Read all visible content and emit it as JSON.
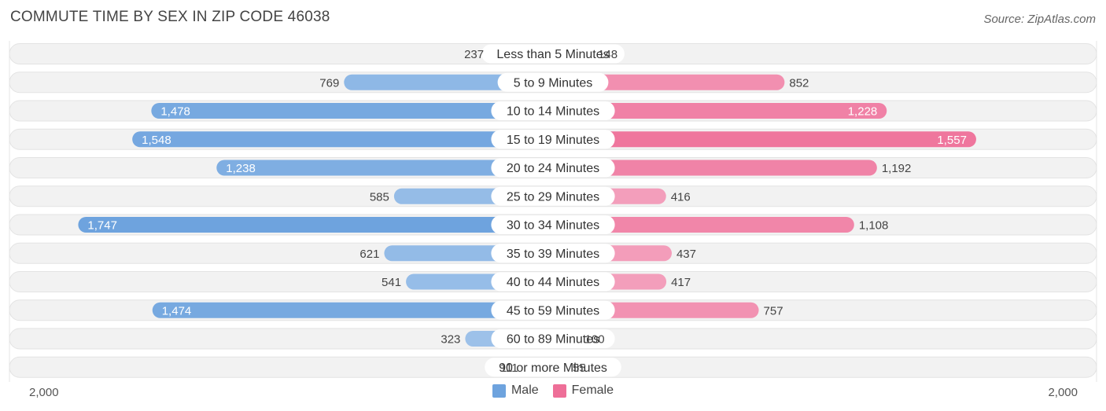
{
  "title": "COMMUTE TIME BY SEX IN ZIP CODE 46038",
  "source": "Source: ZipAtlas.com",
  "colors": {
    "male_light": "#a8c8ec",
    "male_dark": "#6ea3de",
    "female_light": "#f5adc6",
    "female_dark": "#ee6f98"
  },
  "legend": {
    "male": "Male",
    "female": "Female"
  },
  "axis": {
    "left_label": "2,000",
    "right_label": "2,000"
  },
  "chart_data": {
    "type": "bar",
    "orientation": "horizontal-diverging",
    "title": "COMMUTE TIME BY SEX IN ZIP CODE 46038",
    "xlim": [
      -2000,
      2000
    ],
    "categories": [
      "Less than 5 Minutes",
      "5 to 9 Minutes",
      "10 to 14 Minutes",
      "15 to 19 Minutes",
      "20 to 24 Minutes",
      "25 to 29 Minutes",
      "30 to 34 Minutes",
      "35 to 39 Minutes",
      "40 to 44 Minutes",
      "45 to 59 Minutes",
      "60 to 89 Minutes",
      "90 or more Minutes"
    ],
    "series": [
      {
        "name": "Male",
        "values": [
          237,
          769,
          1478,
          1548,
          1238,
          585,
          1747,
          621,
          541,
          1474,
          323,
          111
        ]
      },
      {
        "name": "Female",
        "values": [
          148,
          852,
          1228,
          1557,
          1192,
          416,
          1108,
          437,
          417,
          757,
          100,
          55
        ]
      }
    ],
    "legend_position": "bottom-center"
  }
}
